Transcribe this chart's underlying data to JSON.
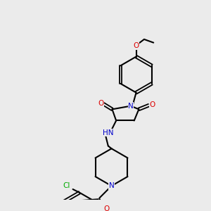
{
  "bg_color": "#ebebeb",
  "bond_color": "#000000",
  "atom_colors": {
    "N": "#0000cc",
    "O": "#dd0000",
    "Cl": "#00aa00",
    "C": "#000000",
    "H": "#707070"
  },
  "figsize": [
    3.0,
    3.0
  ],
  "dpi": 100,
  "lw": 1.5,
  "font_size": 7.5,
  "font_size_small": 6.5
}
